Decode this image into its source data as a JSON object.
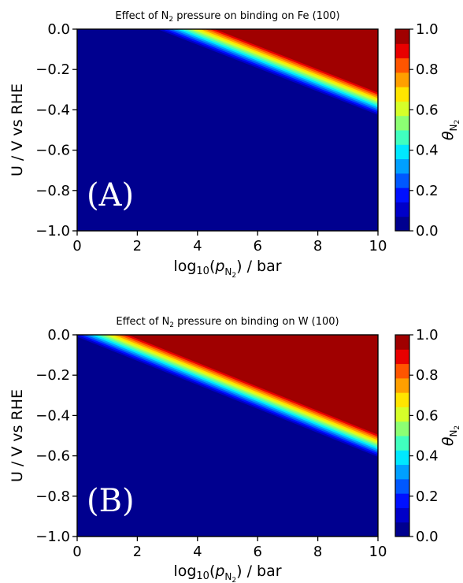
{
  "colormap": [
    "#00008f",
    "#0000c8",
    "#0010ff",
    "#0058ff",
    "#00a0ff",
    "#00e8ff",
    "#40ffbf",
    "#8cff73",
    "#d6ff29",
    "#ffe500",
    "#ff9f00",
    "#ff5500",
    "#e80000",
    "#a00000"
  ],
  "colorbar": {
    "ticks": [
      "0.0",
      "0.2",
      "0.4",
      "0.6",
      "0.8",
      "1.0"
    ],
    "label_symbol": "θ",
    "label_sub": "N",
    "label_sub2": "2"
  },
  "axis_texts": {
    "x_prefix": "log",
    "x_sub": "10",
    "x_open": "(",
    "x_p": "p",
    "x_psub": "N",
    "x_psub2": "2",
    "x_rest": ") / bar",
    "y_label": "U / V vs RHE"
  },
  "chart_data": [
    {
      "type": "heatmap",
      "title_pre": "Effect of N",
      "title_sub": "2",
      "title_post": " pressure on binding on Fe (100)",
      "panel_label": "(A)",
      "xlim": [
        0,
        10
      ],
      "ylim": [
        -1.0,
        0.0
      ],
      "x_ticks": [
        "0",
        "2",
        "4",
        "6",
        "8",
        "10"
      ],
      "y_ticks": [
        "0.0",
        "−0.2",
        "−0.4",
        "−0.6",
        "−0.8",
        "−1.0"
      ],
      "coverage_half_line": {
        "x": [
          0,
          10
        ],
        "y": [
          0.21,
          -0.37
        ]
      },
      "transition_width_V": 0.055,
      "levels": [
        0,
        0.075,
        0.15,
        0.225,
        0.3,
        0.375,
        0.45,
        0.525,
        0.6,
        0.675,
        0.75,
        0.825,
        0.9,
        0.975,
        1.0
      ]
    },
    {
      "type": "heatmap",
      "title_pre": "Effect of N",
      "title_sub": "2",
      "title_post": " pressure on binding on W (100)",
      "panel_label": "(B)",
      "xlim": [
        0,
        10
      ],
      "ylim": [
        -1.0,
        0.0
      ],
      "x_ticks": [
        "0",
        "2",
        "4",
        "6",
        "8",
        "10"
      ],
      "y_ticks": [
        "0.0",
        "−0.2",
        "−0.4",
        "−0.6",
        "−0.8",
        "−1.0"
      ],
      "coverage_half_line": {
        "x": [
          0,
          10
        ],
        "y": [
          0.045,
          -0.55
        ]
      },
      "transition_width_V": 0.055,
      "levels": [
        0,
        0.075,
        0.15,
        0.225,
        0.3,
        0.375,
        0.45,
        0.525,
        0.6,
        0.675,
        0.75,
        0.825,
        0.9,
        0.975,
        1.0
      ]
    }
  ]
}
